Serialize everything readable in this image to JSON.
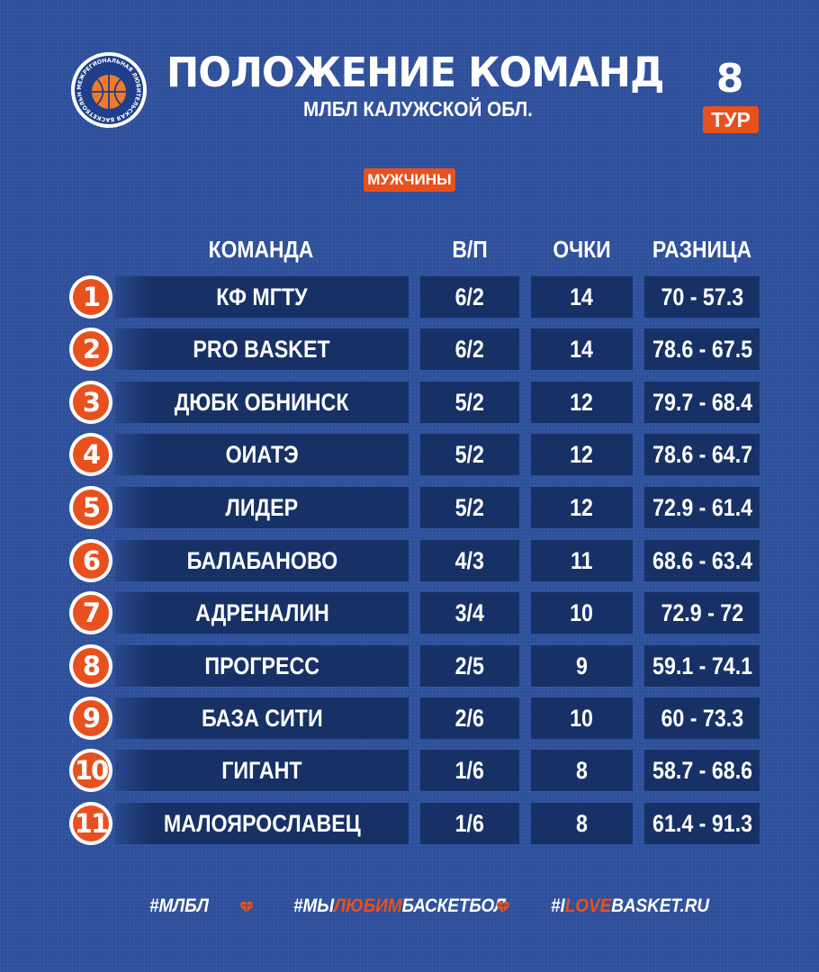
{
  "header": {
    "title": "ПОЛОЖЕНИЕ КОМАНД",
    "subtitle": "МЛБЛ КАЛУЖСКОЙ ОБЛ.",
    "round_number": "8",
    "round_label": "ТУР",
    "category": "МУЖЧИНЫ",
    "logo_text": "МЕЖРЕГИОНАЛЬНАЯ ЛЮБИТЕЛЬСКАЯ БАСКЕТБОЛЬНАЯ ЛИГА"
  },
  "table": {
    "columns": {
      "team": "КОМАНДА",
      "wl": "В/П",
      "points": "ОЧКИ",
      "diff": "РАЗНИЦА"
    },
    "rows": [
      {
        "rank": "1",
        "team": "КФ МГТУ",
        "wl": "6/2",
        "points": "14",
        "diff": "70 - 57.3"
      },
      {
        "rank": "2",
        "team": "PRO BASKET",
        "wl": "6/2",
        "points": "14",
        "diff": "78.6 - 67.5"
      },
      {
        "rank": "3",
        "team": "ДЮБК ОБНИНСК",
        "wl": "5/2",
        "points": "12",
        "diff": "79.7 - 68.4"
      },
      {
        "rank": "4",
        "team": "ОИАТЭ",
        "wl": "5/2",
        "points": "12",
        "diff": "78.6 - 64.7"
      },
      {
        "rank": "5",
        "team": "ЛИДЕР",
        "wl": "5/2",
        "points": "12",
        "diff": "72.9 - 61.4"
      },
      {
        "rank": "6",
        "team": "БАЛАБАНОВО",
        "wl": "4/3",
        "points": "11",
        "diff": "68.6 - 63.4"
      },
      {
        "rank": "7",
        "team": "АДРЕНАЛИН",
        "wl": "3/4",
        "points": "10",
        "diff": "72.9 - 72"
      },
      {
        "rank": "8",
        "team": "ПРОГРЕСС",
        "wl": "2/5",
        "points": "9",
        "diff": "59.1 - 74.1"
      },
      {
        "rank": "9",
        "team": "БАЗА СИТИ",
        "wl": "2/6",
        "points": "10",
        "diff": "60 - 73.3"
      },
      {
        "rank": "10",
        "team": "ГИГАНТ",
        "wl": "1/6",
        "points": "8",
        "diff": "58.7 - 68.6"
      },
      {
        "rank": "11",
        "team": "МАЛОЯРОСЛАВЕЦ",
        "wl": "1/6",
        "points": "8",
        "diff": "61.4 - 91.3"
      }
    ]
  },
  "footer": {
    "tag1": "#МЛБЛ",
    "tag2_prefix": "#МЫ",
    "tag2_accent": "ЛЮБИМ",
    "tag2_suffix": "БАСКЕТБОЛ",
    "tag3_prefix": "#I",
    "tag3_accent": "LOVE",
    "tag3_suffix": "BASKET.RU"
  },
  "colors": {
    "background": "#2d4f9b",
    "row_fill": "#173166",
    "accent": "#e8501e",
    "text": "#ffffff"
  }
}
